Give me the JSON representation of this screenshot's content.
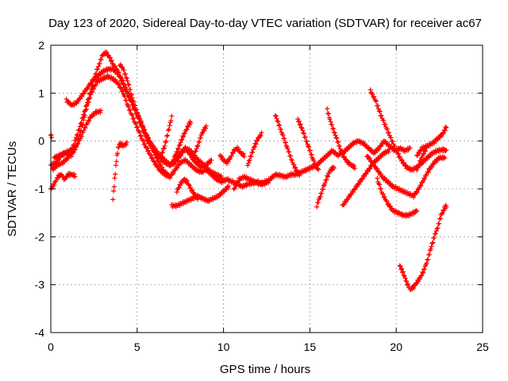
{
  "chart_data": {
    "type": "scatter",
    "title": "Day 123 of 2020, Sidereal Day-to-day VTEC variation (SDTVAR) for receiver ac67",
    "xlabel": "GPS time / hours",
    "ylabel": "SDTVAR / TECUs",
    "xlim": [
      0,
      25
    ],
    "ylim": [
      -4,
      2
    ],
    "x_ticks": [
      "0",
      "5",
      "10",
      "15",
      "20",
      "25"
    ],
    "y_ticks": [
      "-4",
      "-3",
      "-2",
      "-1",
      "0",
      "1",
      "2"
    ],
    "x_tick_values": [
      0,
      5,
      10,
      15,
      20,
      25
    ],
    "y_tick_values": [
      -4,
      -3,
      -2,
      -1,
      0,
      1,
      2
    ],
    "grid": true,
    "marker": "+",
    "marker_color": "#ff0000",
    "traces": [
      [
        [
          0.0,
          -1.0
        ],
        [
          0.2,
          -0.9
        ],
        [
          0.4,
          -0.75
        ],
        [
          0.6,
          -0.7
        ],
        [
          0.8,
          -0.8
        ],
        [
          1.0,
          -0.7
        ],
        [
          1.2,
          -0.7
        ],
        [
          1.4,
          -0.72
        ]
      ],
      [
        [
          0.0,
          -0.5
        ],
        [
          0.3,
          -0.45
        ],
        [
          0.6,
          -0.3
        ],
        [
          0.9,
          -0.25
        ],
        [
          1.2,
          -0.3
        ],
        [
          1.5,
          -0.1
        ],
        [
          1.8,
          0.3
        ],
        [
          2.1,
          0.75
        ],
        [
          2.4,
          1.05
        ],
        [
          2.7,
          1.25
        ],
        [
          3.0,
          1.3
        ],
        [
          3.3,
          1.35
        ],
        [
          3.6,
          1.3
        ],
        [
          3.9,
          1.2
        ],
        [
          4.2,
          1.0
        ],
        [
          4.5,
          0.7
        ],
        [
          4.8,
          0.45
        ],
        [
          5.1,
          0.2
        ],
        [
          5.4,
          -0.05
        ],
        [
          5.7,
          -0.25
        ],
        [
          6.0,
          -0.45
        ],
        [
          6.3,
          -0.6
        ],
        [
          6.6,
          -0.7
        ],
        [
          6.9,
          -0.75
        ],
        [
          7.2,
          -0.6
        ],
        [
          7.5,
          -0.45
        ],
        [
          7.8,
          -0.4
        ],
        [
          8.1,
          -0.5
        ],
        [
          8.4,
          -0.6
        ],
        [
          8.7,
          -0.65
        ],
        [
          9.0,
          -0.6
        ],
        [
          9.3,
          -0.7
        ],
        [
          9.6,
          -0.8
        ],
        [
          9.9,
          -0.85
        ],
        [
          10.2,
          -0.8
        ],
        [
          10.5,
          -0.85
        ],
        [
          10.8,
          -0.9
        ],
        [
          11.1,
          -0.95
        ],
        [
          11.4,
          -0.9
        ],
        [
          11.7,
          -0.88
        ],
        [
          12.0,
          -0.85
        ],
        [
          12.3,
          -0.9
        ],
        [
          12.6,
          -0.85
        ]
      ],
      [
        [
          0.1,
          -0.6
        ],
        [
          0.4,
          -0.5
        ],
        [
          0.7,
          -0.45
        ],
        [
          1.0,
          -0.35
        ],
        [
          1.3,
          -0.1
        ],
        [
          1.6,
          0.2
        ],
        [
          1.9,
          0.55
        ],
        [
          2.2,
          0.9
        ],
        [
          2.5,
          1.3
        ],
        [
          2.8,
          1.6
        ],
        [
          3.0,
          1.8
        ],
        [
          3.2,
          1.85
        ],
        [
          3.4,
          1.75
        ],
        [
          3.6,
          1.6
        ],
        [
          3.9,
          1.45
        ],
        [
          4.2,
          1.2
        ],
        [
          4.5,
          0.95
        ],
        [
          4.8,
          0.75
        ],
        [
          5.1,
          0.5
        ],
        [
          5.4,
          0.25
        ],
        [
          5.7,
          0.0
        ],
        [
          6.0,
          -0.2
        ],
        [
          6.3,
          -0.35
        ],
        [
          6.6,
          -0.45
        ],
        [
          6.9,
          -0.5
        ],
        [
          7.2,
          -0.45
        ],
        [
          7.5,
          -0.3
        ],
        [
          7.8,
          -0.15
        ],
        [
          8.1,
          -0.2
        ],
        [
          8.4,
          -0.35
        ],
        [
          8.7,
          -0.45
        ],
        [
          9.0,
          -0.55
        ],
        [
          9.3,
          -0.65
        ],
        [
          9.6,
          -0.7
        ],
        [
          9.9,
          -0.75
        ]
      ],
      [
        [
          0.9,
          0.85
        ],
        [
          1.2,
          0.75
        ],
        [
          1.5,
          0.8
        ],
        [
          1.8,
          0.95
        ],
        [
          2.1,
          1.1
        ],
        [
          2.4,
          1.25
        ],
        [
          2.7,
          1.35
        ],
        [
          3.0,
          1.45
        ],
        [
          3.3,
          1.5
        ],
        [
          3.6,
          1.5
        ],
        [
          3.9,
          1.4
        ],
        [
          4.2,
          1.2
        ],
        [
          4.5,
          0.95
        ],
        [
          4.8,
          0.7
        ],
        [
          5.1,
          0.45
        ],
        [
          5.4,
          0.2
        ],
        [
          5.7,
          0.0
        ],
        [
          6.0,
          -0.15
        ],
        [
          6.3,
          -0.3
        ],
        [
          6.6,
          -0.4
        ],
        [
          6.9,
          -0.5
        ],
        [
          7.2,
          -0.4
        ],
        [
          7.5,
          -0.25
        ],
        [
          7.8,
          -0.15
        ],
        [
          8.1,
          -0.3
        ],
        [
          8.4,
          -0.45
        ],
        [
          8.7,
          -0.55
        ],
        [
          9.0,
          -0.5
        ],
        [
          9.3,
          -0.4
        ]
      ],
      [
        [
          0.2,
          -0.35
        ],
        [
          0.5,
          -0.3
        ],
        [
          0.8,
          -0.25
        ],
        [
          1.1,
          -0.2
        ],
        [
          1.4,
          -0.15
        ],
        [
          1.7,
          0.05
        ],
        [
          2.0,
          0.3
        ],
        [
          2.3,
          0.5
        ],
        [
          2.6,
          0.6
        ],
        [
          2.9,
          0.62
        ]
      ],
      [
        [
          3.6,
          -1.2
        ],
        [
          3.7,
          -0.8
        ],
        [
          3.8,
          -0.4
        ],
        [
          3.9,
          -0.15
        ],
        [
          4.0,
          -0.05
        ],
        [
          4.2,
          -0.1
        ],
        [
          4.4,
          -0.05
        ]
      ],
      [
        [
          4.0,
          1.6
        ],
        [
          4.2,
          1.5
        ],
        [
          4.4,
          1.3
        ],
        [
          4.6,
          1.05
        ],
        [
          4.8,
          0.8
        ],
        [
          5.0,
          0.6
        ],
        [
          5.2,
          0.4
        ],
        [
          5.4,
          0.2
        ],
        [
          5.6,
          0.0
        ],
        [
          5.8,
          -0.1
        ],
        [
          6.0,
          -0.25
        ],
        [
          6.2,
          -0.4
        ],
        [
          6.4,
          -0.55
        ],
        [
          6.6,
          -0.65
        ],
        [
          6.8,
          -0.72
        ]
      ],
      [
        [
          6.4,
          -0.3
        ],
        [
          6.6,
          -0.1
        ],
        [
          6.8,
          0.2
        ],
        [
          7.0,
          0.5
        ]
      ],
      [
        [
          7.0,
          -0.5
        ],
        [
          7.2,
          -0.3
        ],
        [
          7.4,
          -0.15
        ],
        [
          7.6,
          0.05
        ],
        [
          7.8,
          0.2
        ],
        [
          8.0,
          0.35
        ],
        [
          8.1,
          0.4
        ]
      ],
      [
        [
          8.2,
          -0.4
        ],
        [
          8.4,
          -0.2
        ],
        [
          8.6,
          0.0
        ],
        [
          8.8,
          0.2
        ],
        [
          9.0,
          0.3
        ]
      ],
      [
        [
          7.3,
          -1.05
        ],
        [
          7.5,
          -0.9
        ],
        [
          7.7,
          -0.8
        ],
        [
          7.9,
          -0.85
        ],
        [
          8.1,
          -1.0
        ],
        [
          8.3,
          -1.1
        ],
        [
          8.5,
          -1.2
        ]
      ],
      [
        [
          7.0,
          -1.35
        ],
        [
          7.3,
          -1.35
        ],
        [
          7.6,
          -1.3
        ],
        [
          7.9,
          -1.25
        ],
        [
          8.2,
          -1.2
        ],
        [
          8.5,
          -1.15
        ],
        [
          8.8,
          -1.2
        ],
        [
          9.1,
          -1.25
        ],
        [
          9.4,
          -1.2
        ],
        [
          9.7,
          -1.15
        ],
        [
          10.0,
          -1.05
        ],
        [
          10.3,
          -0.95
        ]
      ],
      [
        [
          9.8,
          -0.3
        ],
        [
          10.0,
          -0.4
        ],
        [
          10.2,
          -0.45
        ],
        [
          10.4,
          -0.35
        ],
        [
          10.6,
          -0.2
        ],
        [
          10.8,
          -0.15
        ],
        [
          11.0,
          -0.25
        ],
        [
          11.2,
          -0.3
        ]
      ],
      [
        [
          11.4,
          -0.5
        ],
        [
          11.6,
          -0.3
        ],
        [
          11.8,
          -0.1
        ],
        [
          12.0,
          0.05
        ],
        [
          12.2,
          0.15
        ]
      ],
      [
        [
          10.6,
          -1.0
        ],
        [
          10.9,
          -0.8
        ],
        [
          11.2,
          -0.75
        ],
        [
          11.5,
          -0.8
        ],
        [
          11.8,
          -0.85
        ],
        [
          12.1,
          -0.9
        ],
        [
          12.4,
          -0.85
        ],
        [
          12.7,
          -0.8
        ],
        [
          13.0,
          -0.7
        ],
        [
          13.3,
          -0.72
        ],
        [
          13.6,
          -0.75
        ],
        [
          13.9,
          -0.7
        ],
        [
          14.2,
          -0.7
        ],
        [
          14.5,
          -0.65
        ],
        [
          14.8,
          -0.6
        ],
        [
          15.1,
          -0.55
        ],
        [
          15.4,
          -0.5
        ],
        [
          15.7,
          -0.4
        ],
        [
          16.0,
          -0.3
        ],
        [
          16.3,
          -0.2
        ],
        [
          16.6,
          -0.3
        ],
        [
          16.9,
          -0.25
        ],
        [
          17.2,
          -0.15
        ],
        [
          17.5,
          -0.05
        ],
        [
          17.8,
          0.0
        ],
        [
          18.1,
          -0.05
        ],
        [
          18.4,
          -0.15
        ],
        [
          18.7,
          -0.25
        ],
        [
          19.0,
          -0.15
        ],
        [
          19.3,
          0.0
        ],
        [
          19.6,
          -0.1
        ],
        [
          19.9,
          -0.2
        ],
        [
          20.2,
          -0.15
        ],
        [
          20.5,
          -0.2
        ],
        [
          20.8,
          -0.15
        ]
      ],
      [
        [
          13.0,
          0.55
        ],
        [
          13.2,
          0.35
        ],
        [
          13.4,
          0.15
        ],
        [
          13.6,
          -0.05
        ],
        [
          13.8,
          -0.25
        ],
        [
          14.0,
          -0.45
        ],
        [
          14.2,
          -0.6
        ],
        [
          14.4,
          -0.7
        ]
      ],
      [
        [
          14.3,
          0.45
        ],
        [
          14.5,
          0.3
        ],
        [
          14.7,
          0.1
        ],
        [
          14.9,
          -0.1
        ],
        [
          15.1,
          -0.3
        ],
        [
          15.3,
          -0.5
        ],
        [
          15.5,
          -0.6
        ]
      ],
      [
        [
          15.4,
          -1.35
        ],
        [
          15.6,
          -1.15
        ],
        [
          15.8,
          -0.95
        ],
        [
          16.0,
          -0.75
        ],
        [
          16.2,
          -0.6
        ],
        [
          16.4,
          -0.55
        ]
      ],
      [
        [
          16.0,
          0.65
        ],
        [
          16.2,
          0.4
        ],
        [
          16.4,
          0.2
        ],
        [
          16.6,
          0.0
        ],
        [
          16.8,
          -0.2
        ],
        [
          17.0,
          -0.35
        ],
        [
          17.2,
          -0.45
        ],
        [
          17.4,
          -0.5
        ],
        [
          17.6,
          -0.55
        ]
      ],
      [
        [
          16.9,
          -1.35
        ],
        [
          17.2,
          -1.2
        ],
        [
          17.5,
          -1.05
        ],
        [
          17.8,
          -0.9
        ],
        [
          18.1,
          -0.75
        ],
        [
          18.4,
          -0.6
        ],
        [
          18.7,
          -0.45
        ],
        [
          19.0,
          -0.35
        ],
        [
          19.3,
          -0.25
        ],
        [
          19.6,
          -0.2
        ]
      ],
      [
        [
          18.5,
          1.05
        ],
        [
          18.8,
          0.85
        ],
        [
          19.1,
          0.55
        ],
        [
          19.4,
          0.3
        ],
        [
          19.7,
          0.05
        ],
        [
          20.0,
          -0.2
        ],
        [
          20.3,
          -0.4
        ],
        [
          20.6,
          -0.55
        ],
        [
          20.9,
          -0.6
        ],
        [
          21.2,
          -0.55
        ],
        [
          21.5,
          -0.45
        ],
        [
          21.8,
          -0.35
        ],
        [
          22.1,
          -0.25
        ],
        [
          22.4,
          -0.2
        ],
        [
          22.7,
          -0.18
        ],
        [
          22.9,
          -0.2
        ]
      ],
      [
        [
          18.3,
          -0.3
        ],
        [
          18.6,
          -0.45
        ],
        [
          18.9,
          -0.6
        ],
        [
          19.2,
          -0.75
        ],
        [
          19.5,
          -0.85
        ],
        [
          19.8,
          -0.95
        ],
        [
          20.1,
          -1.0
        ],
        [
          20.4,
          -1.05
        ],
        [
          20.7,
          -1.1
        ],
        [
          21.0,
          -1.15
        ],
        [
          21.3,
          -1.0
        ],
        [
          21.6,
          -0.8
        ],
        [
          21.9,
          -0.6
        ],
        [
          22.2,
          -0.45
        ],
        [
          22.5,
          -0.35
        ],
        [
          22.8,
          -0.35
        ]
      ],
      [
        [
          18.9,
          -0.8
        ],
        [
          19.2,
          -1.1
        ],
        [
          19.5,
          -1.3
        ],
        [
          19.8,
          -1.45
        ],
        [
          20.1,
          -1.5
        ],
        [
          20.4,
          -1.55
        ],
        [
          20.7,
          -1.55
        ],
        [
          21.0,
          -1.5
        ],
        [
          21.2,
          -1.45
        ]
      ],
      [
        [
          21.2,
          -0.3
        ],
        [
          21.5,
          -0.15
        ],
        [
          21.8,
          -0.1
        ],
        [
          22.1,
          -0.05
        ],
        [
          22.4,
          0.05
        ],
        [
          22.7,
          0.15
        ],
        [
          22.9,
          0.3
        ]
      ],
      [
        [
          21.2,
          -0.6
        ],
        [
          21.4,
          -0.4
        ],
        [
          21.6,
          -0.25
        ],
        [
          21.8,
          -0.1
        ]
      ],
      [
        [
          20.2,
          -2.6
        ],
        [
          20.4,
          -2.75
        ],
        [
          20.6,
          -2.95
        ],
        [
          20.8,
          -3.1
        ],
        [
          21.0,
          -3.05
        ],
        [
          21.2,
          -2.95
        ],
        [
          21.4,
          -2.85
        ],
        [
          21.6,
          -2.7
        ],
        [
          21.8,
          -2.5
        ],
        [
          22.0,
          -2.25
        ],
        [
          22.2,
          -2.0
        ],
        [
          22.4,
          -1.8
        ],
        [
          22.6,
          -1.55
        ],
        [
          22.8,
          -1.4
        ],
        [
          22.9,
          -1.35
        ]
      ],
      [
        [
          0.0,
          0.12
        ],
        [
          0.05,
          0.1
        ]
      ]
    ]
  }
}
